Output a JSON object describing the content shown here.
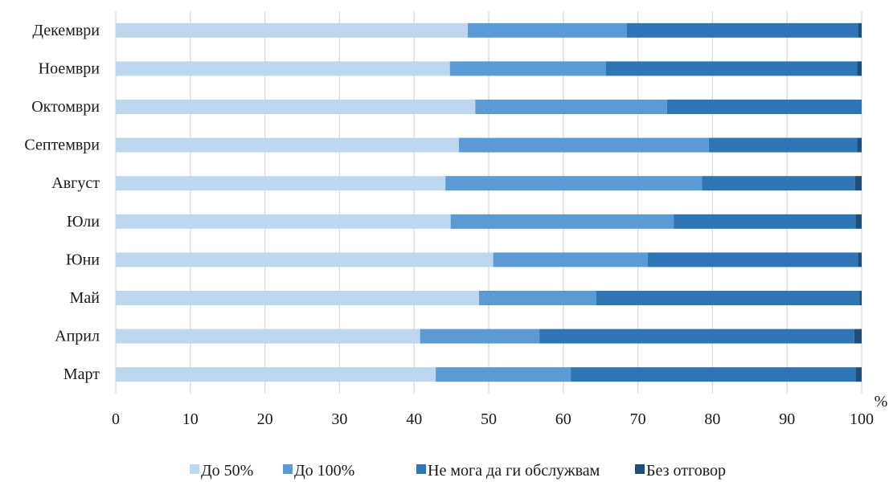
{
  "chart_data": {
    "type": "bar",
    "orientation": "horizontal",
    "stacked": true,
    "categories": [
      "Декември",
      "Ноември",
      "Октомври",
      "Септември",
      "Август",
      "Юли",
      "Юни",
      "Май",
      "Април",
      "Март"
    ],
    "series": [
      {
        "name": "До 50%",
        "color": "#bdd7ee",
        "values": [
          47.2,
          44.8,
          48.2,
          46.0,
          44.2,
          44.9,
          50.6,
          48.7,
          40.8,
          42.9
        ]
      },
      {
        "name": "До 100%",
        "color": "#5b9bd5",
        "values": [
          21.3,
          20.9,
          25.7,
          33.5,
          34.4,
          29.9,
          20.7,
          15.7,
          16.0,
          18.1
        ]
      },
      {
        "name": "Не мога да ги обслужвам",
        "color": "#2e75b6",
        "values": [
          31.0,
          33.7,
          26.1,
          19.9,
          20.5,
          24.4,
          28.2,
          35.3,
          42.2,
          38.2
        ]
      },
      {
        "name": "Без отговор",
        "color": "#1f4e79",
        "values": [
          0.5,
          0.6,
          0.0,
          0.6,
          0.9,
          0.8,
          0.5,
          0.3,
          1.0,
          0.8
        ]
      }
    ],
    "xlim": [
      0,
      100
    ],
    "xticks": [
      "0",
      "10",
      "20",
      "30",
      "40",
      "50",
      "60",
      "70",
      "80",
      "90",
      "100"
    ],
    "xlabel": "%",
    "grid": "vertical",
    "legend_position": "bottom"
  }
}
